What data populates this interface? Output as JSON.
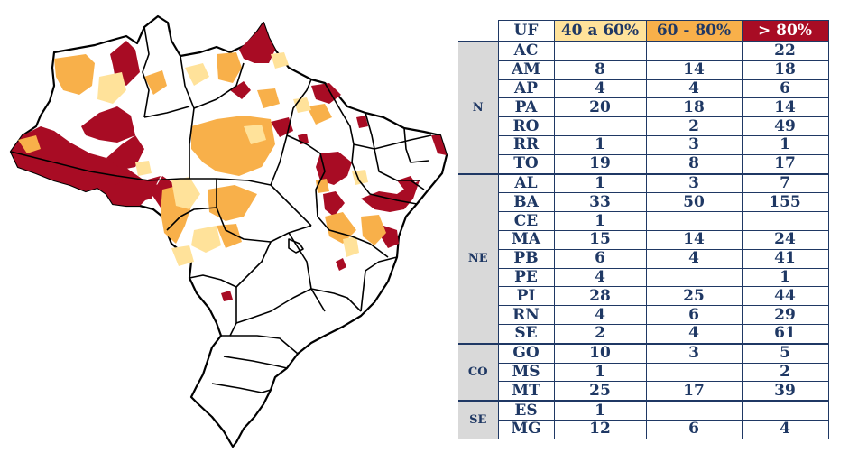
{
  "legend": {
    "uf_header": "UF",
    "class_low": "40 a 60%",
    "class_mid": "60 - 80%",
    "class_high": "> 80%",
    "color_low": "#ffe29a",
    "color_mid": "#f8b04a",
    "color_high": "#a80c24"
  },
  "regions": [
    {
      "name": "N",
      "rows": [
        {
          "uf": "AC",
          "low": "",
          "mid": "",
          "high": "22"
        },
        {
          "uf": "AM",
          "low": "8",
          "mid": "14",
          "high": "18"
        },
        {
          "uf": "AP",
          "low": "4",
          "mid": "4",
          "high": "6"
        },
        {
          "uf": "PA",
          "low": "20",
          "mid": "18",
          "high": "14"
        },
        {
          "uf": "RO",
          "low": "",
          "mid": "2",
          "high": "49"
        },
        {
          "uf": "RR",
          "low": "1",
          "mid": "3",
          "high": "1"
        },
        {
          "uf": "TO",
          "low": "19",
          "mid": "8",
          "high": "17"
        }
      ]
    },
    {
      "name": "NE",
      "rows": [
        {
          "uf": "AL",
          "low": "1",
          "mid": "3",
          "high": "7"
        },
        {
          "uf": "BA",
          "low": "33",
          "mid": "50",
          "high": "155"
        },
        {
          "uf": "CE",
          "low": "1",
          "mid": "",
          "high": ""
        },
        {
          "uf": "MA",
          "low": "15",
          "mid": "14",
          "high": "24"
        },
        {
          "uf": "PB",
          "low": "6",
          "mid": "4",
          "high": "41"
        },
        {
          "uf": "PE",
          "low": "4",
          "mid": "",
          "high": "1"
        },
        {
          "uf": "PI",
          "low": "28",
          "mid": "25",
          "high": "44"
        },
        {
          "uf": "RN",
          "low": "4",
          "mid": "6",
          "high": "29"
        },
        {
          "uf": "SE",
          "low": "2",
          "mid": "4",
          "high": "61"
        }
      ]
    },
    {
      "name": "CO",
      "rows": [
        {
          "uf": "GO",
          "low": "10",
          "mid": "3",
          "high": "5"
        },
        {
          "uf": "MS",
          "low": "1",
          "mid": "",
          "high": "2"
        },
        {
          "uf": "MT",
          "low": "25",
          "mid": "17",
          "high": "39"
        }
      ]
    },
    {
      "name": "SE",
      "rows": [
        {
          "uf": "ES",
          "low": "1",
          "mid": "",
          "high": ""
        },
        {
          "uf": "MG",
          "low": "12",
          "mid": "6",
          "high": "4"
        }
      ]
    }
  ]
}
